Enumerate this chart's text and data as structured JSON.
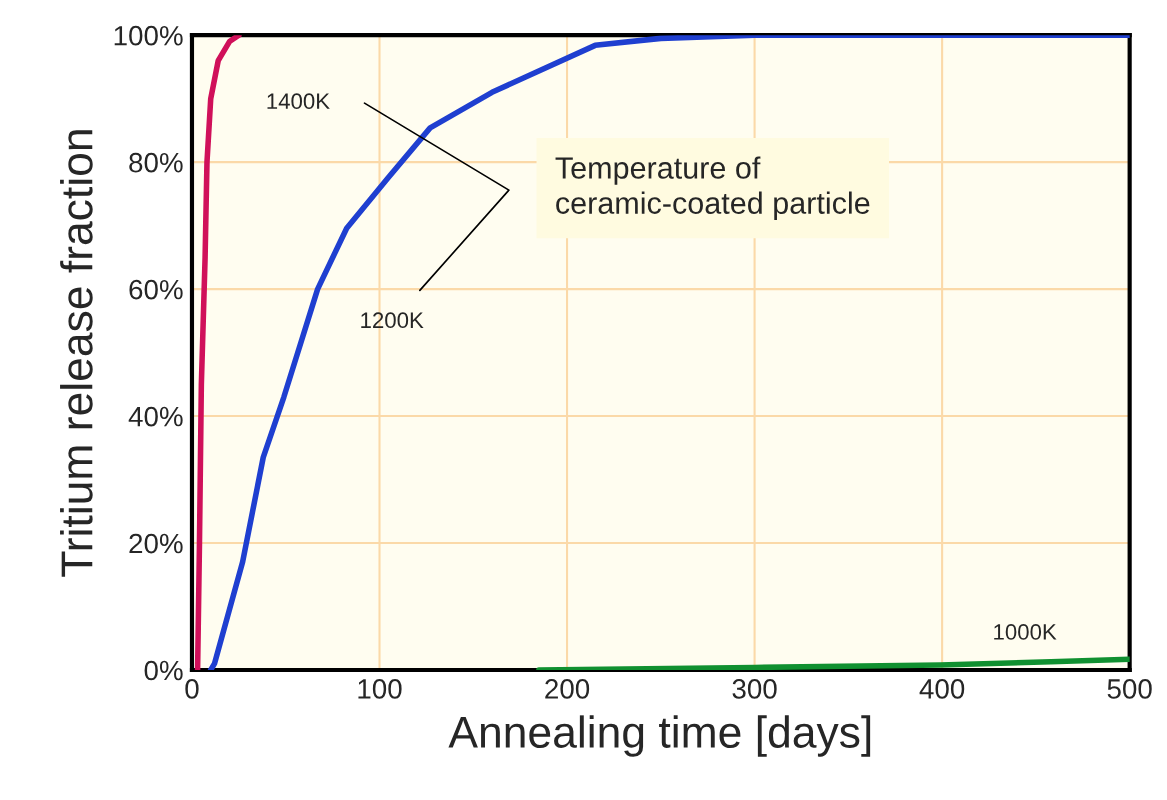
{
  "chart_data": {
    "type": "line",
    "xlabel": "Annealing time [days]",
    "ylabel": "Tritium release fraction",
    "xlim": [
      0,
      500
    ],
    "xticks": [
      0,
      100,
      200,
      300,
      400,
      500
    ],
    "ylim": [
      0,
      100
    ],
    "yticks": [
      {
        "value": 0,
        "label": "0%"
      },
      {
        "value": 20,
        "label": "20%"
      },
      {
        "value": 40,
        "label": "40%"
      },
      {
        "value": 60,
        "label": "60%"
      },
      {
        "value": 80,
        "label": "80%"
      },
      {
        "value": 100,
        "label": "100%"
      }
    ],
    "grid": true,
    "legend": false,
    "marker": "none",
    "line_style": "solid",
    "annotations": [
      "Temperature of\nceramic-coated particle"
    ],
    "series": [
      {
        "name": "1400K",
        "color": "#d0105a",
        "x": [
          3,
          4,
          5,
          7,
          8,
          10,
          14,
          20,
          25
        ],
        "values": [
          0,
          20,
          45,
          65,
          80,
          90,
          96,
          99,
          100
        ]
      },
      {
        "name": "1200K",
        "color": "#1f3fd0",
        "x": [
          10,
          12,
          27,
          38,
          49,
          67,
          82.5,
          104.5,
          127,
          160,
          215,
          250,
          300,
          500
        ],
        "values": [
          0,
          1,
          17,
          33.5,
          43,
          60,
          69.6,
          77.5,
          85.4,
          91,
          98.4,
          99.5,
          100,
          100
        ]
      },
      {
        "name": "1000K",
        "color": "#109030",
        "x": [
          185,
          300,
          399,
          458,
          500
        ],
        "values": [
          0,
          0.4,
          0.8,
          1.3,
          1.7
        ]
      }
    ]
  }
}
